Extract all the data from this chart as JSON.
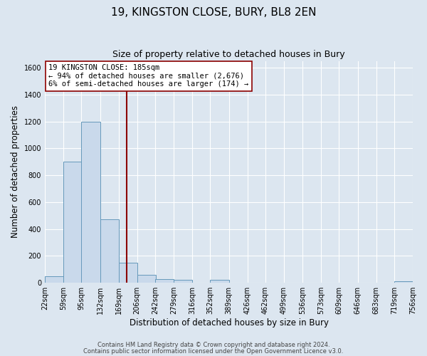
{
  "title": "19, KINGSTON CLOSE, BURY, BL8 2EN",
  "subtitle": "Size of property relative to detached houses in Bury",
  "xlabel": "Distribution of detached houses by size in Bury",
  "ylabel": "Number of detached properties",
  "bin_edges": [
    22,
    59,
    95,
    132,
    169,
    206,
    242,
    279,
    316,
    352,
    389,
    426,
    462,
    499,
    536,
    573,
    609,
    646,
    683,
    719,
    756
  ],
  "bin_counts": [
    50,
    900,
    1200,
    470,
    150,
    60,
    30,
    20,
    0,
    20,
    0,
    0,
    0,
    0,
    0,
    0,
    0,
    0,
    0,
    10
  ],
  "bar_facecolor": "#c9d9eb",
  "bar_edgecolor": "#6699bb",
  "property_value": 185,
  "vline_color": "#8b0000",
  "ylim": [
    0,
    1650
  ],
  "yticks": [
    0,
    200,
    400,
    600,
    800,
    1000,
    1200,
    1400,
    1600
  ],
  "tick_labels": [
    "22sqm",
    "59sqm",
    "95sqm",
    "132sqm",
    "169sqm",
    "206sqm",
    "242sqm",
    "279sqm",
    "316sqm",
    "352sqm",
    "389sqm",
    "426sqm",
    "462sqm",
    "499sqm",
    "536sqm",
    "573sqm",
    "609sqm",
    "646sqm",
    "683sqm",
    "719sqm",
    "756sqm"
  ],
  "annotation_title": "19 KINGSTON CLOSE: 185sqm",
  "annotation_line1": "← 94% of detached houses are smaller (2,676)",
  "annotation_line2": "6% of semi-detached houses are larger (174) →",
  "annotation_box_facecolor": "#ffffff",
  "annotation_box_edgecolor": "#8b0000",
  "footer_line1": "Contains HM Land Registry data © Crown copyright and database right 2024.",
  "footer_line2": "Contains public sector information licensed under the Open Government Licence v3.0.",
  "background_color": "#dce6f0",
  "plot_bg_color": "#dce6f0",
  "grid_color": "#ffffff",
  "title_fontsize": 11,
  "subtitle_fontsize": 9,
  "axis_label_fontsize": 8.5,
  "tick_fontsize": 7,
  "annotation_fontsize": 7.5,
  "footer_fontsize": 6
}
